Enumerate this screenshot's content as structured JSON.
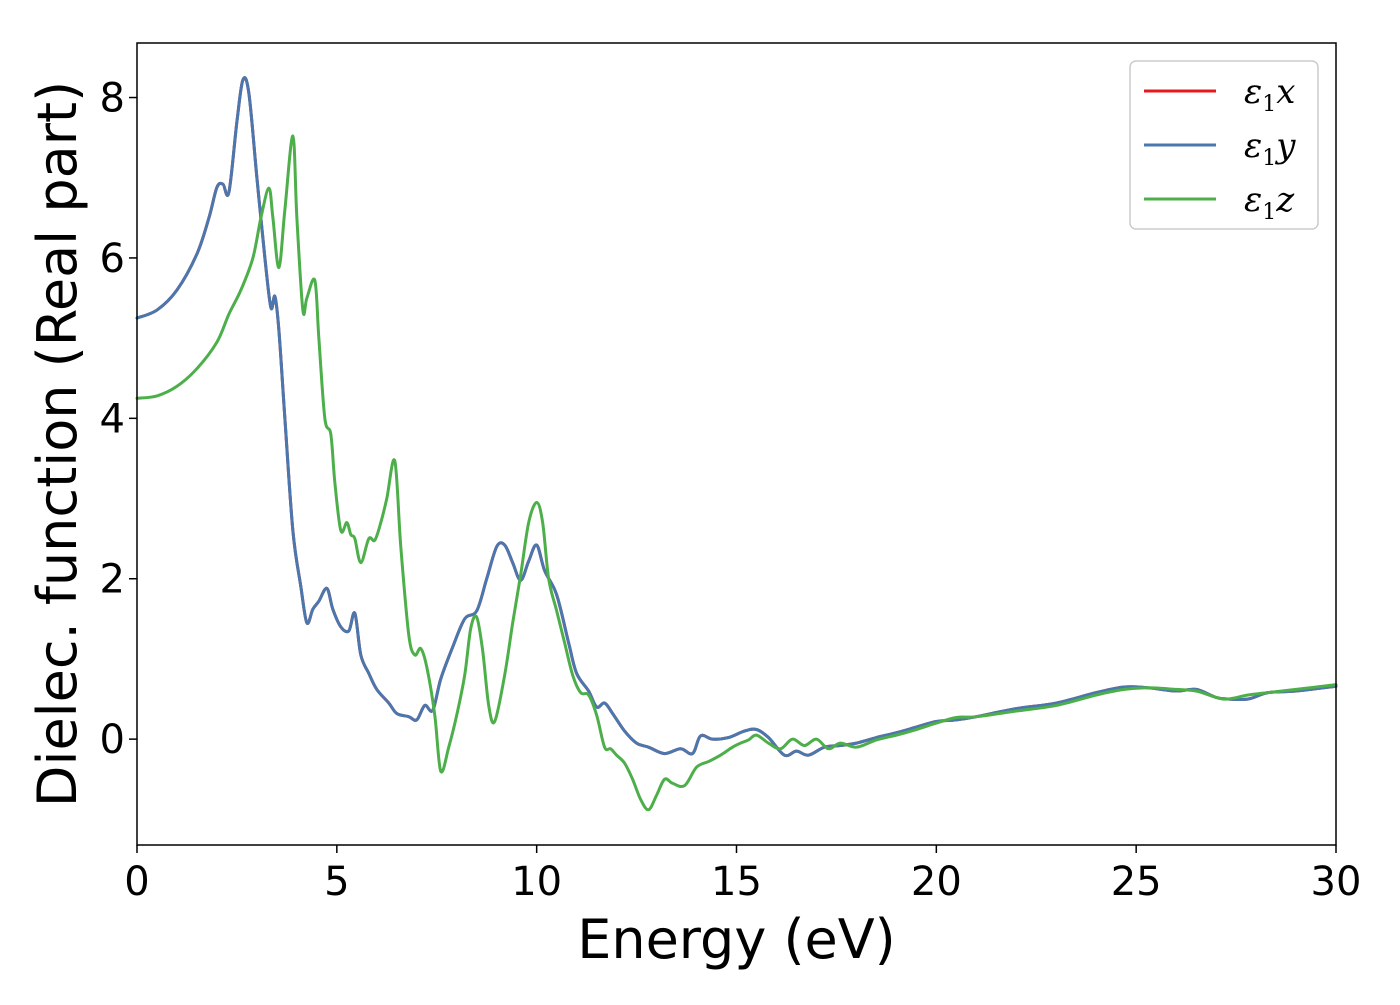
{
  "chart_data": {
    "type": "line",
    "title": "",
    "xlabel": "Energy (eV)",
    "ylabel": "Dielec. function (Real part)",
    "xlim": [
      0,
      30
    ],
    "ylim": [
      -1.32,
      8.68
    ],
    "xticks": [
      0,
      5,
      10,
      15,
      20,
      25,
      30
    ],
    "yticks": [
      0,
      2,
      4,
      6,
      8
    ],
    "xtick_labels": [
      "0",
      "5",
      "10",
      "15",
      "20",
      "25",
      "30"
    ],
    "ytick_labels": [
      "0",
      "2",
      "4",
      "6",
      "8"
    ],
    "grid": false,
    "legend": "top-right",
    "series": [
      {
        "name": "ε1x",
        "symbol": "ε",
        "subscript": "1",
        "suffix": "x",
        "color": "#e41a1c",
        "x": [
          0,
          0.5,
          1.0,
          1.5,
          1.8,
          2.0,
          2.15,
          2.3,
          2.5,
          2.65,
          2.8,
          3.0,
          3.2,
          3.35,
          3.45,
          3.55,
          3.7,
          3.9,
          4.1,
          4.25,
          4.4,
          4.55,
          4.75,
          4.9,
          5.1,
          5.3,
          5.45,
          5.6,
          5.8,
          6.0,
          6.3,
          6.5,
          6.8,
          7.0,
          7.2,
          7.4,
          7.6,
          7.9,
          8.2,
          8.5,
          8.75,
          9.0,
          9.2,
          9.4,
          9.6,
          9.8,
          10.0,
          10.2,
          10.5,
          10.8,
          11.0,
          11.3,
          11.5,
          11.7,
          11.9,
          12.2,
          12.5,
          12.8,
          13.2,
          13.6,
          13.9,
          14.1,
          14.4,
          14.8,
          15.2,
          15.5,
          15.8,
          16.2,
          16.5,
          16.8,
          17.2,
          17.6,
          18.0,
          18.5,
          19.0,
          19.5,
          20.0,
          20.5,
          21.0,
          22.0,
          23.0,
          24.0,
          24.7,
          25.3,
          26.0,
          26.5,
          27.0,
          27.3,
          27.8,
          28.3,
          29.0,
          30.0
        ],
        "y": [
          5.25,
          5.35,
          5.6,
          6.05,
          6.5,
          6.88,
          6.92,
          6.82,
          7.7,
          8.22,
          8.05,
          7.0,
          6.0,
          5.38,
          5.52,
          5.1,
          4.0,
          2.6,
          1.9,
          1.45,
          1.62,
          1.72,
          1.88,
          1.62,
          1.4,
          1.35,
          1.57,
          1.05,
          0.82,
          0.62,
          0.45,
          0.32,
          0.28,
          0.24,
          0.42,
          0.36,
          0.75,
          1.15,
          1.5,
          1.6,
          2.0,
          2.4,
          2.42,
          2.2,
          1.98,
          2.22,
          2.42,
          2.1,
          1.8,
          1.2,
          0.82,
          0.6,
          0.4,
          0.45,
          0.32,
          0.1,
          -0.05,
          -0.1,
          -0.18,
          -0.12,
          -0.18,
          0.04,
          0.0,
          0.02,
          0.1,
          0.12,
          0.02,
          -0.2,
          -0.15,
          -0.2,
          -0.1,
          -0.08,
          -0.05,
          0.02,
          0.08,
          0.15,
          0.22,
          0.24,
          0.28,
          0.38,
          0.45,
          0.58,
          0.65,
          0.64,
          0.6,
          0.62,
          0.52,
          0.5,
          0.5,
          0.58,
          0.6,
          0.66
        ]
      },
      {
        "name": "ε1y",
        "symbol": "ε",
        "subscript": "1",
        "suffix": "y",
        "color": "#4a78ae",
        "x": [
          0,
          0.5,
          1.0,
          1.5,
          1.8,
          2.0,
          2.15,
          2.3,
          2.5,
          2.65,
          2.8,
          3.0,
          3.2,
          3.35,
          3.45,
          3.55,
          3.7,
          3.9,
          4.1,
          4.25,
          4.4,
          4.55,
          4.75,
          4.9,
          5.1,
          5.3,
          5.45,
          5.6,
          5.8,
          6.0,
          6.3,
          6.5,
          6.8,
          7.0,
          7.2,
          7.4,
          7.6,
          7.9,
          8.2,
          8.5,
          8.75,
          9.0,
          9.2,
          9.4,
          9.6,
          9.8,
          10.0,
          10.2,
          10.5,
          10.8,
          11.0,
          11.3,
          11.5,
          11.7,
          11.9,
          12.2,
          12.5,
          12.8,
          13.2,
          13.6,
          13.9,
          14.1,
          14.4,
          14.8,
          15.2,
          15.5,
          15.8,
          16.2,
          16.5,
          16.8,
          17.2,
          17.6,
          18.0,
          18.5,
          19.0,
          19.5,
          20.0,
          20.5,
          21.0,
          22.0,
          23.0,
          24.0,
          24.7,
          25.3,
          26.0,
          26.5,
          27.0,
          27.3,
          27.8,
          28.3,
          29.0,
          30.0
        ],
        "y": [
          5.25,
          5.35,
          5.6,
          6.05,
          6.5,
          6.88,
          6.92,
          6.82,
          7.7,
          8.22,
          8.05,
          7.0,
          6.0,
          5.38,
          5.52,
          5.1,
          4.0,
          2.6,
          1.9,
          1.45,
          1.62,
          1.72,
          1.88,
          1.62,
          1.4,
          1.35,
          1.57,
          1.05,
          0.82,
          0.62,
          0.45,
          0.32,
          0.28,
          0.24,
          0.42,
          0.36,
          0.75,
          1.15,
          1.5,
          1.6,
          2.0,
          2.4,
          2.42,
          2.2,
          1.98,
          2.22,
          2.42,
          2.1,
          1.8,
          1.2,
          0.82,
          0.6,
          0.4,
          0.45,
          0.32,
          0.1,
          -0.05,
          -0.1,
          -0.18,
          -0.12,
          -0.18,
          0.04,
          0.0,
          0.02,
          0.1,
          0.12,
          0.02,
          -0.2,
          -0.15,
          -0.2,
          -0.1,
          -0.08,
          -0.05,
          0.02,
          0.08,
          0.15,
          0.22,
          0.24,
          0.28,
          0.38,
          0.45,
          0.58,
          0.65,
          0.64,
          0.6,
          0.62,
          0.52,
          0.5,
          0.5,
          0.58,
          0.6,
          0.66
        ]
      },
      {
        "name": "ε1z",
        "symbol": "ε",
        "subscript": "1",
        "suffix": "z",
        "color": "#4daf4a",
        "x": [
          0,
          0.5,
          1.0,
          1.5,
          2.0,
          2.3,
          2.6,
          2.9,
          3.1,
          3.3,
          3.4,
          3.55,
          3.7,
          3.9,
          4.0,
          4.15,
          4.25,
          4.45,
          4.55,
          4.7,
          4.85,
          4.95,
          5.1,
          5.25,
          5.35,
          5.45,
          5.6,
          5.8,
          5.95,
          6.1,
          6.25,
          6.45,
          6.6,
          6.8,
          6.95,
          7.1,
          7.25,
          7.45,
          7.6,
          7.8,
          8.0,
          8.2,
          8.35,
          8.5,
          8.65,
          8.8,
          8.95,
          9.2,
          9.4,
          9.6,
          9.8,
          10.0,
          10.15,
          10.3,
          10.5,
          10.7,
          10.9,
          11.1,
          11.3,
          11.5,
          11.7,
          11.85,
          12.0,
          12.2,
          12.4,
          12.6,
          12.8,
          13.0,
          13.2,
          13.4,
          13.7,
          14.0,
          14.3,
          14.6,
          14.9,
          15.1,
          15.3,
          15.5,
          15.8,
          16.1,
          16.4,
          16.7,
          17.0,
          17.3,
          17.6,
          18.0,
          18.5,
          19.0,
          19.5,
          20.0,
          20.5,
          21.0,
          22.0,
          23.0,
          24.0,
          24.7,
          25.3,
          26.0,
          26.5,
          27.0,
          27.3,
          27.8,
          28.3,
          29.0,
          30.0
        ],
        "y": [
          4.25,
          4.28,
          4.4,
          4.62,
          4.95,
          5.3,
          5.6,
          6.0,
          6.5,
          6.87,
          6.5,
          5.88,
          6.6,
          7.52,
          6.5,
          5.35,
          5.5,
          5.72,
          5.0,
          4.0,
          3.8,
          3.2,
          2.6,
          2.7,
          2.55,
          2.5,
          2.2,
          2.5,
          2.48,
          2.7,
          3.0,
          3.47,
          2.4,
          1.3,
          1.05,
          1.13,
          0.9,
          0.3,
          -0.4,
          -0.1,
          0.3,
          0.8,
          1.38,
          1.52,
          1.1,
          0.42,
          0.22,
          0.8,
          1.45,
          2.05,
          2.7,
          2.95,
          2.7,
          2.0,
          1.6,
          1.2,
          0.8,
          0.58,
          0.55,
          0.3,
          -0.1,
          -0.12,
          -0.2,
          -0.3,
          -0.5,
          -0.75,
          -0.88,
          -0.7,
          -0.5,
          -0.55,
          -0.58,
          -0.35,
          -0.28,
          -0.2,
          -0.1,
          -0.05,
          -0.01,
          0.05,
          -0.05,
          -0.12,
          0.0,
          -0.08,
          0.0,
          -0.12,
          -0.05,
          -0.1,
          -0.01,
          0.05,
          0.12,
          0.2,
          0.27,
          0.28,
          0.35,
          0.42,
          0.55,
          0.62,
          0.64,
          0.62,
          0.6,
          0.52,
          0.5,
          0.55,
          0.58,
          0.62,
          0.68
        ]
      }
    ]
  }
}
